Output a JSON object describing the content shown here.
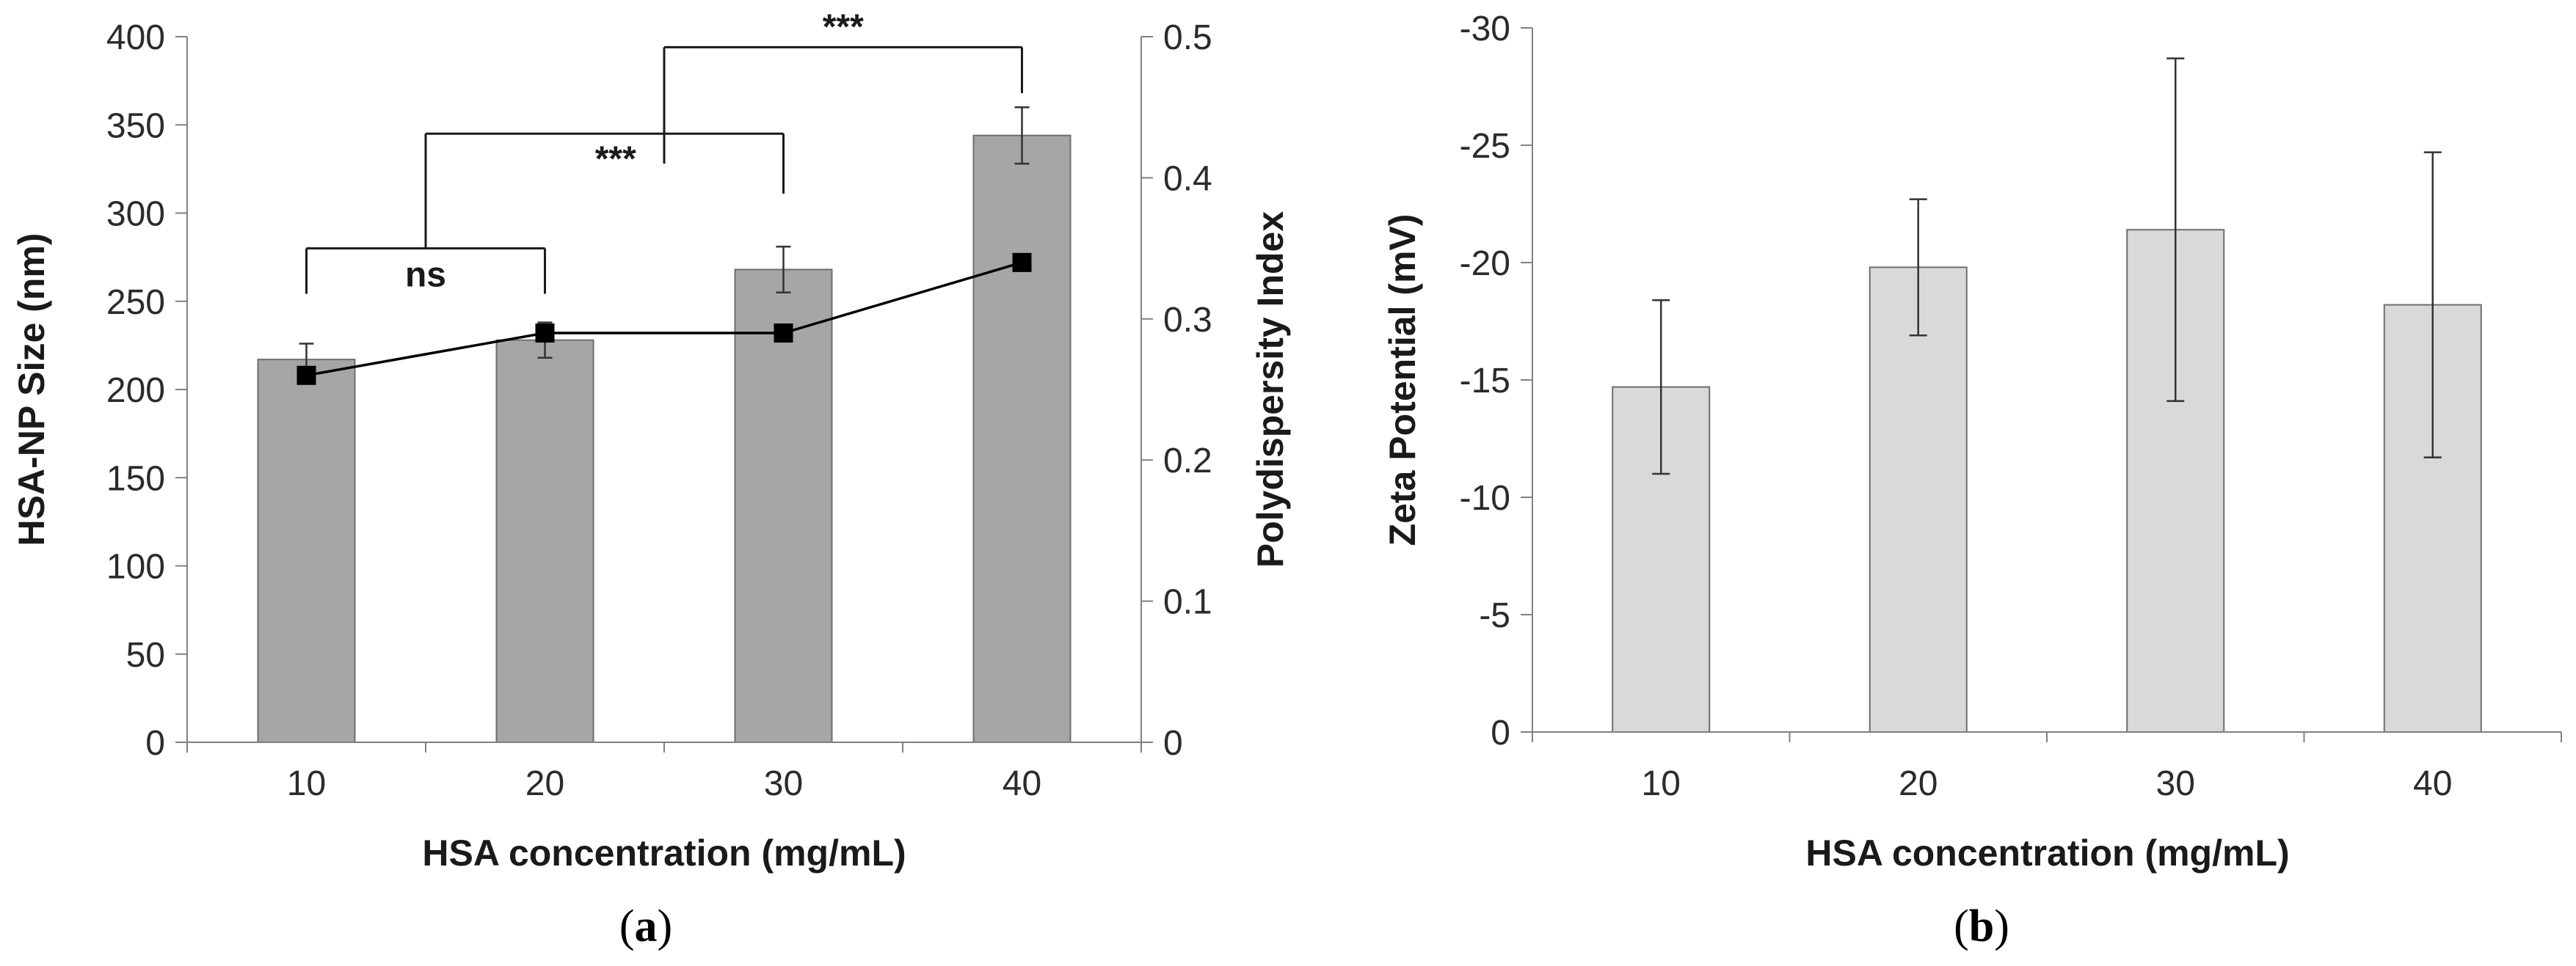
{
  "chart_data": [
    {
      "type": "bar",
      "panel_label": "a",
      "categories": [
        "10",
        "20",
        "30",
        "40"
      ],
      "xlabel": "HSA concentration (mg/mL)",
      "ylabel": "HSA-NP Size (nm)",
      "y2label": "Polydispersity Index",
      "ylim": [
        0,
        400
      ],
      "yticks": [
        "0",
        "50",
        "100",
        "150",
        "200",
        "250",
        "300",
        "350",
        "400"
      ],
      "y2lim": [
        0,
        0.5
      ],
      "y2ticks": [
        "0",
        "0.1",
        "0.2",
        "0.3",
        "0.4",
        "0.5"
      ],
      "grid": false,
      "series": [
        {
          "name": "HSA-NP Size (nm)",
          "kind": "bar",
          "axis": "left",
          "color": "#a6a6a6",
          "values": [
            217,
            228,
            268,
            344
          ],
          "errors": [
            9,
            10,
            13,
            16
          ]
        },
        {
          "name": "Polydispersity Index",
          "kind": "line",
          "axis": "right",
          "marker": "square",
          "color": "#000000",
          "values": [
            0.26,
            0.29,
            0.29,
            0.34
          ]
        }
      ],
      "annotations": [
        {
          "text": "ns",
          "from": "10",
          "to": "20",
          "level": 280
        },
        {
          "text": "***",
          "from": "10-20",
          "to": "30",
          "level": 345
        },
        {
          "text": "***",
          "from": "20-30",
          "to": "40",
          "level": 394
        }
      ]
    },
    {
      "type": "bar",
      "panel_label": "b",
      "categories": [
        "10",
        "20",
        "30",
        "40"
      ],
      "xlabel": "HSA concentration (mg/mL)",
      "ylabel": "Zeta Potential (mV)",
      "ylim": [
        0,
        -30
      ],
      "yticks": [
        "0",
        "-5",
        "-10",
        "-15",
        "-20",
        "-25",
        "-30"
      ],
      "grid": false,
      "series": [
        {
          "name": "Zeta Potential (mV)",
          "kind": "bar",
          "color": "#d9d9d9",
          "values": [
            -14.7,
            -19.8,
            -21.4,
            -18.2
          ],
          "errors": [
            3.7,
            2.9,
            7.3,
            6.5
          ]
        }
      ]
    }
  ]
}
